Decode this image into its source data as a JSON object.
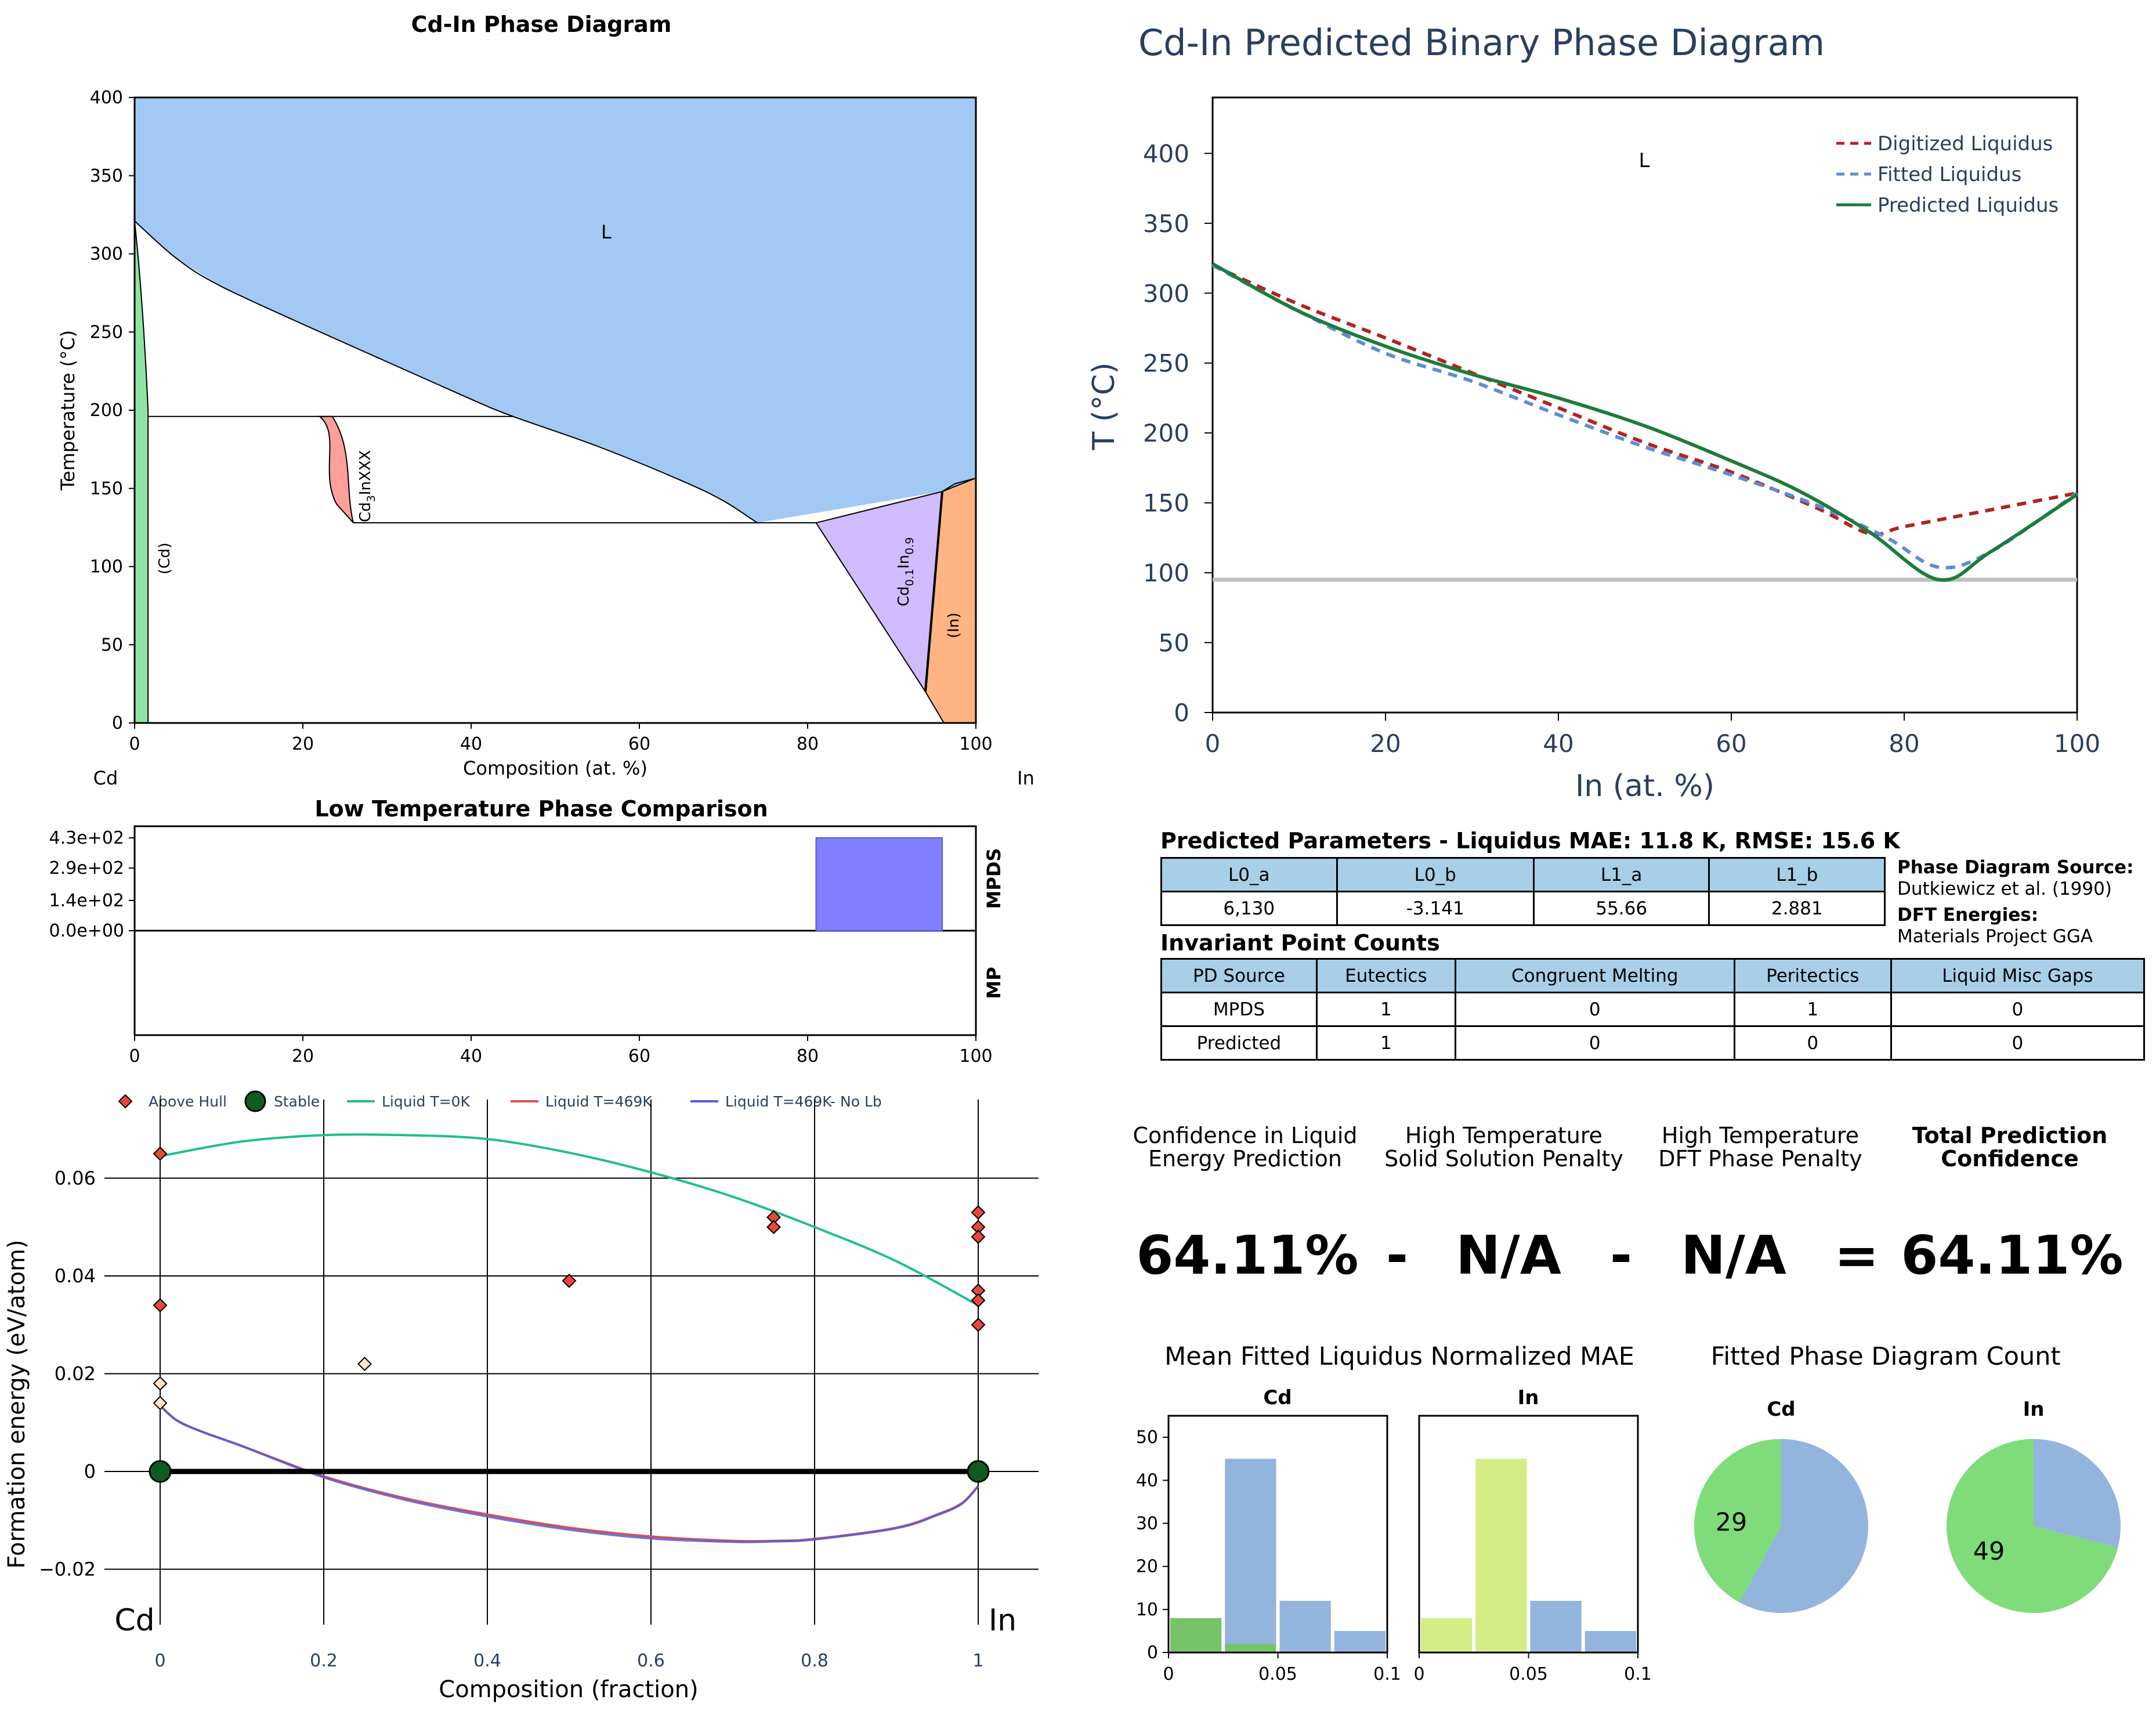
{
  "colors": {
    "liquid": "#a1c9f4",
    "cd_solid": "#8de5a1",
    "cd3in": "#ff9f9b",
    "cd01in09": "#d0bbff",
    "in_solid": "#ffb482",
    "digitized": "#b22222",
    "fitted": "#5b8ed6",
    "predicted": "#1e7b3a",
    "mpds_bar": "#8080ff",
    "hull_above": "#e8473b",
    "stable": "#0b5d1e",
    "liq0k": "#1fbf8f",
    "liq469": "#d9534f",
    "liq469nolb": "#5a5ad6",
    "hist_blue": "#93b4dc",
    "hist_green": "#77c36a",
    "hist_lime": "#d4ec86",
    "pie_green": "#7fdc7a",
    "pie_blue": "#93b4dc"
  },
  "phase_diagram": {
    "title": "Cd-In Phase Diagram",
    "xlabel": "Composition (at. %)",
    "ylabel": "Temperature (°C)",
    "left_element": "Cd",
    "right_element": "In",
    "xticks": [
      "0",
      "20",
      "40",
      "60",
      "80",
      "100"
    ],
    "yticks": [
      "0",
      "50",
      "100",
      "150",
      "200",
      "250",
      "300",
      "350",
      "400"
    ],
    "phase_L": "L",
    "phase_cd": "(Cd)",
    "phase_cd3in_base": "Cd",
    "phase_cd3in_sub": "3",
    "phase_cd3in_tail": "InXXX",
    "phase_cd01_a": "Cd",
    "phase_cd01_b": "0.1",
    "phase_cd01_c": "In",
    "phase_cd01_d": "0.9",
    "phase_in": "(In)"
  },
  "low_temp": {
    "title": "Low Temperature Phase Comparison",
    "yticks": [
      "4.3e+02",
      "2.9e+02",
      "1.4e+02",
      "0.0e+00"
    ],
    "xticks": [
      "0",
      "20",
      "40",
      "60",
      "80",
      "100"
    ],
    "row_mpds": "MPDS",
    "row_mp": "MP"
  },
  "hull": {
    "legend": [
      "Above Hull",
      "Stable",
      "Liquid T=0K",
      "Liquid T=469K",
      "Liquid T=469K- No Lb"
    ],
    "ylabel": "Formation energy (eV/atom)",
    "xlabel": "Composition (fraction)",
    "xticks": [
      "0",
      "0.2",
      "0.4",
      "0.6",
      "0.8",
      "1"
    ],
    "yticks": [
      "0.06",
      "0.04",
      "0.02",
      "0",
      "−0.02"
    ],
    "left_element": "Cd",
    "right_element": "In"
  },
  "predicted": {
    "title": "Cd-In Predicted Binary Phase Diagram",
    "xlabel": "In (at. %)",
    "ylabel": "T (°C)",
    "xticks": [
      "0",
      "20",
      "40",
      "60",
      "80",
      "100"
    ],
    "yticks": [
      "0",
      "50",
      "100",
      "150",
      "200",
      "250",
      "300",
      "350",
      "400"
    ],
    "phase_L": "L",
    "legend": [
      "Digitized Liquidus",
      "Fitted Liquidus",
      "Predicted Liquidus"
    ]
  },
  "params": {
    "title": "Predicted Parameters - Liquidus MAE: 11.8 K, RMSE: 15.6 K",
    "headers": [
      "L0_a",
      "L0_b",
      "L1_a",
      "L1_b"
    ],
    "values": [
      "6,130",
      "-3.141",
      "55.66",
      "2.881"
    ]
  },
  "source": {
    "pd_label": "Phase Diagram Source:",
    "pd_value": "Dutkiewicz et al. (1990)",
    "dft_label": "DFT Energies:",
    "dft_value": "Materials Project GGA"
  },
  "invariants": {
    "title": "Invariant Point Counts",
    "headers": [
      "PD Source",
      "Eutectics",
      "Congruent Melting",
      "Peritectics",
      "Liquid Misc Gaps"
    ],
    "rows": [
      [
        "MPDS",
        "1",
        "0",
        "1",
        "0"
      ],
      [
        "Predicted",
        "1",
        "0",
        "0",
        "0"
      ]
    ]
  },
  "confidence": {
    "h1a": "Confidence in Liquid",
    "h1b": "Energy Prediction",
    "h2a": "High Temperature",
    "h2b": "Solid Solution Penalty",
    "h3a": "High Temperature",
    "h3b": "DFT Phase Penalty",
    "h4a": "Total Prediction",
    "h4b": "Confidence",
    "v1": "64.11%",
    "op1": "-",
    "v2": "N/A",
    "op2": "-",
    "v3": "N/A",
    "op3": "=",
    "v4": "64.11%"
  },
  "mae": {
    "title": "Mean Fitted Liquidus Normalized MAE",
    "panel_cd": "Cd",
    "panel_in": "In",
    "yticks": [
      "0",
      "10",
      "20",
      "30",
      "40",
      "50"
    ],
    "xticks": [
      "0",
      "0.05",
      "0.1"
    ]
  },
  "pies": {
    "title": "Fitted Phase Diagram Count",
    "cd_title": "Cd",
    "in_title": "In",
    "cd_label": "29",
    "in_label": "49"
  },
  "chart_data": [
    {
      "type": "area",
      "name": "phase_diagram",
      "title": "Cd-In Phase Diagram",
      "xlabel": "Composition (at. %)",
      "ylabel": "Temperature (°C)",
      "xlim": [
        0,
        100
      ],
      "ylim": [
        0,
        400
      ],
      "liquidus": [
        [
          0,
          321
        ],
        [
          5,
          297
        ],
        [
          10,
          280
        ],
        [
          20,
          255
        ],
        [
          30,
          231
        ],
        [
          40,
          207
        ],
        [
          45,
          196
        ],
        [
          55,
          177
        ],
        [
          65,
          155
        ],
        [
          70,
          142
        ],
        [
          74,
          128
        ],
        [
          96,
          148
        ],
        [
          100,
          156.6
        ]
      ],
      "eutectic_T": 128,
      "peritectic_T": 196,
      "phases": [
        {
          "name": "L",
          "region": "above liquidus"
        },
        {
          "name": "(Cd)",
          "x": [
            0,
            1.6
          ]
        },
        {
          "name": "Cd3InXXX",
          "x": [
            22,
            26
          ],
          "T": [
            128,
            196
          ]
        },
        {
          "name": "Cd0.1In0.9",
          "x": [
            81,
            96
          ],
          "T": [
            20,
            150
          ]
        },
        {
          "name": "(In)",
          "x": [
            94,
            100
          ],
          "T": [
            0,
            156.6
          ]
        }
      ]
    },
    {
      "type": "bar",
      "name": "low_temp_comparison",
      "title": "Low Temperature Phase Comparison",
      "rows": [
        "MPDS",
        "MP"
      ],
      "bars": [
        {
          "row": "MPDS",
          "x_start": 81,
          "x_end": 96,
          "value": 430
        }
      ]
    },
    {
      "type": "scatter",
      "name": "convex_hull",
      "xlabel": "Composition (fraction)",
      "ylabel": "Formation energy (eV/atom)",
      "xlim": [
        -0.05,
        1.05
      ],
      "ylim": [
        -0.025,
        0.072
      ],
      "stable": [
        [
          0,
          0
        ],
        [
          1,
          0
        ]
      ],
      "above_hull": [
        [
          0,
          0.065
        ],
        [
          0,
          0.034
        ],
        [
          0,
          0.018
        ],
        [
          0,
          0.014
        ],
        [
          0.25,
          0.022
        ],
        [
          0.5,
          0.039
        ],
        [
          0.75,
          0.052
        ],
        [
          0.75,
          0.05
        ],
        [
          1,
          0.053
        ],
        [
          1,
          0.05
        ],
        [
          1,
          0.048
        ],
        [
          1,
          0.037
        ],
        [
          1,
          0.035
        ],
        [
          1,
          0.03
        ]
      ],
      "series": [
        {
          "name": "Liquid T=0K",
          "x": [
            0,
            0.1,
            0.2,
            0.3,
            0.4,
            0.5,
            0.6,
            0.7,
            0.8,
            0.9,
            1
          ],
          "y": [
            0.0645,
            0.0675,
            0.0688,
            0.0688,
            0.068,
            0.0652,
            0.0612,
            0.0562,
            0.05,
            0.043,
            0.034
          ]
        },
        {
          "name": "Liquid T=469K",
          "x": [
            0,
            0.02,
            0.05,
            0.1,
            0.2,
            0.3,
            0.4,
            0.5,
            0.6,
            0.7,
            0.75,
            0.8,
            0.9,
            0.95,
            0.98,
            1
          ],
          "y": [
            0.0135,
            0.0105,
            0.0082,
            0.0052,
            -0.001,
            -0.0055,
            -0.0088,
            -0.0115,
            -0.0133,
            -0.0142,
            -0.0142,
            -0.0138,
            -0.0115,
            -0.0088,
            -0.0065,
            -0.003
          ]
        },
        {
          "name": "Liquid T=469K- No Lb",
          "x": [
            0,
            0.02,
            0.05,
            0.1,
            0.2,
            0.3,
            0.4,
            0.5,
            0.6,
            0.7,
            0.75,
            0.8,
            0.9,
            0.95,
            0.98,
            1
          ],
          "y": [
            0.0135,
            0.0105,
            0.0082,
            0.0052,
            -0.0012,
            -0.0058,
            -0.0092,
            -0.0119,
            -0.0137,
            -0.0144,
            -0.0143,
            -0.0139,
            -0.0116,
            -0.0089,
            -0.0066,
            -0.003
          ]
        }
      ]
    },
    {
      "type": "line",
      "name": "predicted_phase_diagram",
      "title": "Cd-In Predicted Binary Phase Diagram",
      "xlabel": "In (at. %)",
      "ylabel": "T (°C)",
      "xlim": [
        0,
        100
      ],
      "ylim": [
        0,
        440
      ],
      "hline": 95,
      "series": [
        {
          "name": "Digitized Liquidus",
          "x": [
            0,
            10,
            20,
            30,
            40,
            50,
            60,
            70,
            76,
            80,
            90,
            100
          ],
          "y": [
            320,
            292,
            268,
            243,
            218,
            193,
            172,
            146,
            128,
            133,
            145,
            157
          ]
        },
        {
          "name": "Fitted Liquidus",
          "x": [
            0,
            10,
            20,
            30,
            40,
            50,
            60,
            70,
            78,
            84,
            90,
            100
          ],
          "y": [
            320,
            287,
            257,
            237,
            213,
            190,
            170,
            148,
            125,
            104,
            115,
            157
          ]
        },
        {
          "name": "Predicted Liquidus",
          "x": [
            0,
            10,
            20,
            30,
            40,
            50,
            60,
            68,
            76,
            84,
            90,
            100
          ],
          "y": [
            321,
            287,
            262,
            242,
            225,
            205,
            180,
            158,
            129,
            95,
            115,
            156
          ]
        }
      ]
    },
    {
      "type": "bar",
      "name": "mae_histograms",
      "panels": [
        {
          "name": "Cd",
          "bins": [
            [
              0,
              0.025
            ],
            [
              0.025,
              0.05
            ],
            [
              0.05,
              0.075
            ],
            [
              0.075,
              0.1
            ]
          ],
          "series": [
            {
              "name": "blue",
              "values": [
                0,
                45,
                12,
                5
              ]
            },
            {
              "name": "green",
              "values": [
                8,
                2,
                0,
                0
              ]
            }
          ]
        },
        {
          "name": "In",
          "bins": [
            [
              0,
              0.025
            ],
            [
              0.025,
              0.05
            ],
            [
              0.05,
              0.075
            ],
            [
              0.075,
              0.1
            ]
          ],
          "series": [
            {
              "name": "blue",
              "values": [
                0,
                0,
                12,
                5
              ]
            },
            {
              "name": "lime",
              "values": [
                8,
                45,
                0,
                0
              ]
            }
          ]
        }
      ],
      "ylim": [
        0,
        55
      ]
    },
    {
      "type": "pie",
      "name": "fitted_count",
      "pies": [
        {
          "name": "Cd",
          "slices": [
            {
              "label": "29",
              "value": 29,
              "color": "green"
            },
            {
              "label": "",
              "value": 40,
              "color": "blue"
            }
          ]
        },
        {
          "name": "In",
          "slices": [
            {
              "label": "49",
              "value": 49,
              "color": "green"
            },
            {
              "label": "",
              "value": 20,
              "color": "blue"
            }
          ]
        }
      ]
    }
  ]
}
